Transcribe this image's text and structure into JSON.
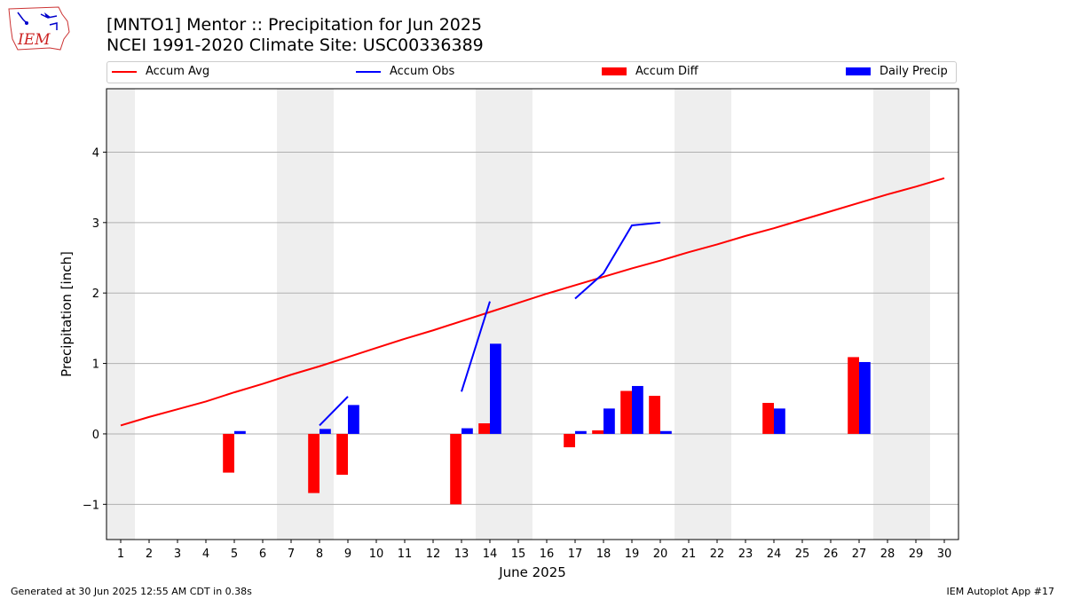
{
  "header": {
    "title": "[MNTO1] Mentor :: Precipitation for Jun 2025",
    "subtitle": "NCEI 1991-2020 Climate Site: USC00336389"
  },
  "logo": {
    "text": "IEM",
    "icon": "iowa-state-logo-icon"
  },
  "legend": {
    "items": [
      {
        "label": "Accum Avg",
        "kind": "line",
        "color": "#ff0000"
      },
      {
        "label": "Accum Obs",
        "kind": "line",
        "color": "#0000ff"
      },
      {
        "label": "Accum Diff",
        "kind": "bar",
        "color": "#ff0000"
      },
      {
        "label": "Daily Precip",
        "kind": "bar",
        "color": "#0000ff"
      }
    ]
  },
  "footer": {
    "left": "Generated at 30 Jun 2025 12:55 AM CDT in 0.38s",
    "right": "IEM Autoplot App #17"
  },
  "chart_data": {
    "type": "bar",
    "title": "[MNTO1] Mentor :: Precipitation for Jun 2025",
    "xlabel": "June 2025",
    "ylabel": "Precipitation [inch]",
    "xlim": [
      0.5,
      30.5
    ],
    "ylim": [
      -1.5,
      4.9
    ],
    "x_ticks": [
      1,
      2,
      3,
      4,
      5,
      6,
      7,
      8,
      9,
      10,
      11,
      12,
      13,
      14,
      15,
      16,
      17,
      18,
      19,
      20,
      21,
      22,
      23,
      24,
      25,
      26,
      27,
      28,
      29,
      30
    ],
    "y_ticks": [
      -1,
      0,
      1,
      2,
      3,
      4
    ],
    "grid": "horizontal",
    "legend_position": "top",
    "weekend_shading": [
      [
        0.5,
        1.5
      ],
      [
        6.5,
        8.5
      ],
      [
        13.5,
        15.5
      ],
      [
        20.5,
        22.5
      ],
      [
        27.5,
        29.5
      ]
    ],
    "colors": {
      "red": "#ff0000",
      "blue": "#0000ff",
      "shade": "#eeeeee",
      "grid": "#b0b0b0"
    },
    "series": [
      {
        "name": "Accum Avg",
        "kind": "line",
        "color": "#ff0000",
        "x": [
          1,
          2,
          3,
          4,
          5,
          6,
          7,
          8,
          9,
          10,
          11,
          12,
          13,
          14,
          15,
          16,
          17,
          18,
          19,
          20,
          21,
          22,
          23,
          24,
          25,
          26,
          27,
          28,
          29,
          30
        ],
        "values": [
          0.12,
          0.24,
          0.35,
          0.46,
          0.59,
          0.71,
          0.84,
          0.96,
          1.09,
          1.22,
          1.35,
          1.47,
          1.6,
          1.73,
          1.86,
          1.99,
          2.11,
          2.23,
          2.35,
          2.46,
          2.58,
          2.69,
          2.81,
          2.92,
          3.04,
          3.16,
          3.28,
          3.4,
          3.51,
          3.63
        ]
      },
      {
        "name": "Accum Obs",
        "kind": "line",
        "color": "#0000ff",
        "segments": [
          {
            "x": [
              8,
              9
            ],
            "values": [
              0.12,
              0.53
            ]
          },
          {
            "x": [
              13,
              14
            ],
            "values": [
              0.6,
              1.88
            ]
          },
          {
            "x": [
              17,
              18,
              19,
              20
            ],
            "values": [
              1.92,
              2.28,
              2.96,
              3.0
            ]
          }
        ]
      },
      {
        "name": "Accum Diff",
        "kind": "bar",
        "color": "#ff0000",
        "x": [
          5,
          8,
          9,
          13,
          14,
          17,
          18,
          19,
          20,
          24,
          27
        ],
        "values": [
          -0.55,
          -0.84,
          -0.58,
          -1.0,
          0.15,
          -0.19,
          0.05,
          0.61,
          0.54,
          0.44,
          1.09
        ]
      },
      {
        "name": "Daily Precip",
        "kind": "bar",
        "color": "#0000ff",
        "x": [
          5,
          8,
          9,
          13,
          14,
          17,
          18,
          19,
          20,
          24,
          27
        ],
        "values": [
          0.04,
          0.07,
          0.41,
          0.08,
          1.28,
          0.04,
          0.36,
          0.68,
          0.04,
          0.36,
          1.02
        ]
      }
    ]
  }
}
